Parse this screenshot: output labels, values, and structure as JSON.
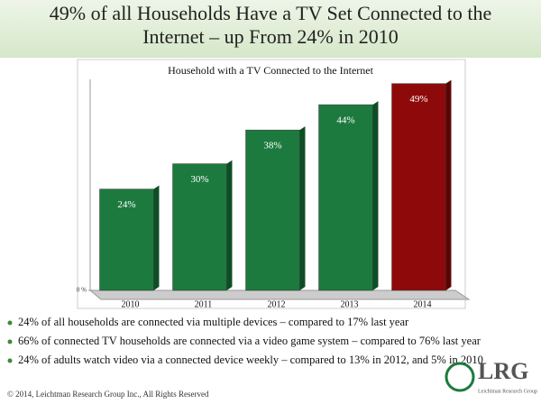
{
  "title": "49% of all Households Have a TV Set Connected to the Internet – up From 24% in 2010",
  "chart_data": {
    "type": "bar",
    "title": "Household with a TV Connected to the Internet",
    "categories": [
      "2010",
      "2011",
      "2012",
      "2013",
      "2014"
    ],
    "values": [
      24,
      30,
      38,
      44,
      49
    ],
    "value_labels": [
      "24%",
      "30%",
      "38%",
      "44%",
      "49%"
    ],
    "colors": [
      "#1d7a3e",
      "#1d7a3e",
      "#1d7a3e",
      "#1d7a3e",
      "#8e0a0a"
    ],
    "ylim": [
      0,
      50
    ],
    "yticks": [
      {
        "value": 0,
        "label": "0 %"
      }
    ]
  },
  "bullets": [
    "24% of all households are connected via multiple devices – compared to 17% last year",
    "66% of connected TV households are connected via a video game system – compared to 76% last year",
    "24% of adults watch video via a connected device weekly – compared to 13% in 2012, and 5% in 2010"
  ],
  "footer": "© 2014, Leichtman Research Group Inc., All Rights Reserved",
  "logo": {
    "name": "LRG",
    "subtitle": "Leichtman Research Group"
  }
}
